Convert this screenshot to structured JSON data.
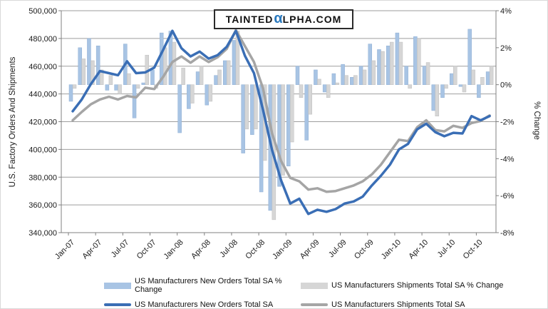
{
  "logo": {
    "prefix": "TAINTED",
    "alpha": "α",
    "suffix": "LPHA.COM",
    "alpha_color": "#2878BE"
  },
  "y_left_axis": {
    "title": "U.S. Factory Orders And Shipments",
    "min": 340000,
    "max": 500000,
    "step": 20000,
    "tick_labels": [
      "500,000",
      "480,000",
      "460,000",
      "440,000",
      "420,000",
      "400,000",
      "380,000",
      "360,000",
      "340,000"
    ]
  },
  "y_right_axis": {
    "title": "% Change",
    "min": -8,
    "max": 4,
    "step": 2,
    "tick_labels": [
      "4%",
      "2%",
      "0%",
      "-2%",
      "-4%",
      "-6%",
      "-8%"
    ]
  },
  "colors": {
    "bar_new_orders": "#a8c4e4",
    "bar_new_orders_border": "#8fafd4",
    "bar_shipments": "#d6d6d6",
    "bar_shipments_border": "#bfbfbf",
    "line_new_orders": "#3a6eb5",
    "line_shipments": "#a5a5a5",
    "gridline": "#9e9e9e",
    "spine": "#808080"
  },
  "chart_data": {
    "type": "combo",
    "x_tick_every": 3,
    "grid": "horizontal",
    "legend_position": "bottom",
    "months": [
      "Jan-07",
      "Feb-07",
      "Mar-07",
      "Apr-07",
      "May-07",
      "Jun-07",
      "Jul-07",
      "Aug-07",
      "Sep-07",
      "Oct-07",
      "Nov-07",
      "Dec-07",
      "Jan-08",
      "Feb-08",
      "Mar-08",
      "Apr-08",
      "May-08",
      "Jun-08",
      "Jul-08",
      "Aug-08",
      "Sep-08",
      "Oct-08",
      "Nov-08",
      "Dec-08",
      "Jan-09",
      "Feb-09",
      "Mar-09",
      "Apr-09",
      "May-09",
      "Jun-09",
      "Jul-09",
      "Aug-09",
      "Sep-09",
      "Oct-09",
      "Nov-09",
      "Dec-09",
      "Jan-10",
      "Feb-10",
      "Mar-10",
      "Apr-10",
      "May-10",
      "Jun-10",
      "Jul-10",
      "Aug-10",
      "Sep-10",
      "Oct-10",
      "Nov-10"
    ],
    "series": [
      {
        "name": "US Manufacturers New Orders Total SA % Change",
        "type": "bar",
        "axis": "right",
        "color": "#a8c4e4",
        "values": [
          -0.9,
          2.0,
          2.5,
          2.1,
          -0.3,
          -0.3,
          2.2,
          -1.8,
          0.1,
          0.8,
          2.8,
          2.9,
          -2.6,
          -1.3,
          0.7,
          -1.1,
          0.5,
          1.3,
          2.4,
          -3.7,
          -2.7,
          -5.8,
          -6.8,
          -5.5,
          -4.4,
          1.0,
          -3.0,
          0.8,
          -0.4,
          0.6,
          1.1,
          0.4,
          1.0,
          2.2,
          1.9,
          2.1,
          2.8,
          1.0,
          2.6,
          1.0,
          -1.4,
          -0.7,
          0.6,
          -0.1,
          3.0,
          -0.7,
          0.7
        ]
      },
      {
        "name": "US Manufacturers Shipments Total SA % Change",
        "type": "bar",
        "axis": "right",
        "color": "#d6d6d6",
        "values": [
          -0.2,
          1.4,
          1.3,
          0.8,
          0.5,
          -0.5,
          0.6,
          -0.2,
          1.6,
          -0.2,
          2.0,
          2.3,
          0.9,
          -1.0,
          1.0,
          -0.9,
          0.8,
          1.3,
          2.9,
          -2.4,
          -2.4,
          -4.1,
          -7.3,
          -4.9,
          -3.1,
          -0.7,
          -1.6,
          0.3,
          -0.7,
          0.1,
          0.5,
          0.5,
          0.8,
          1.3,
          1.8,
          2.3,
          2.3,
          -0.2,
          2.5,
          1.2,
          -1.7,
          -0.2,
          1.0,
          -0.4,
          0.8,
          0.4,
          1.0
        ]
      },
      {
        "name": "US Manufacturers New Orders Total SA",
        "type": "line",
        "axis": "left",
        "color": "#3a6eb5",
        "values": [
          427500,
          436000,
          447000,
          456500,
          455000,
          453500,
          463500,
          455000,
          455500,
          459000,
          472000,
          485500,
          473000,
          467000,
          470500,
          465500,
          468000,
          474000,
          485500,
          467500,
          455000,
          428500,
          399500,
          377500,
          361000,
          364500,
          353500,
          356500,
          355000,
          357000,
          361000,
          362500,
          366000,
          374000,
          381000,
          389000,
          400000,
          404000,
          414500,
          418500,
          412500,
          409500,
          412000,
          411500,
          424000,
          421000,
          424000
        ]
      },
      {
        "name": "US Manufacturers Shipments Total SA",
        "type": "line",
        "axis": "left",
        "color": "#a5a5a5",
        "values": [
          421000,
          427000,
          432500,
          436000,
          438000,
          436000,
          438500,
          437500,
          444500,
          443500,
          452500,
          463000,
          467000,
          462500,
          467000,
          463000,
          466500,
          472500,
          486000,
          474500,
          463000,
          444000,
          411500,
          391500,
          379500,
          377000,
          371000,
          372000,
          369500,
          370000,
          372000,
          374000,
          377000,
          382000,
          389000,
          398000,
          407000,
          406000,
          416000,
          421000,
          414000,
          413000,
          417000,
          415500,
          419000,
          420500,
          424500
        ]
      }
    ]
  },
  "legend": {
    "items": [
      {
        "label": "US Manufacturers New Orders Total SA % Change",
        "swatch": "bar",
        "series": 0
      },
      {
        "label": "US Manufacturers Shipments Total SA % Change",
        "swatch": "bar",
        "series": 1
      },
      {
        "label": "US Manufacturers New Orders Total SA",
        "swatch": "line",
        "series": 2
      },
      {
        "label": "US Manufacturers Shipments Total SA",
        "swatch": "line",
        "series": 3
      }
    ]
  }
}
